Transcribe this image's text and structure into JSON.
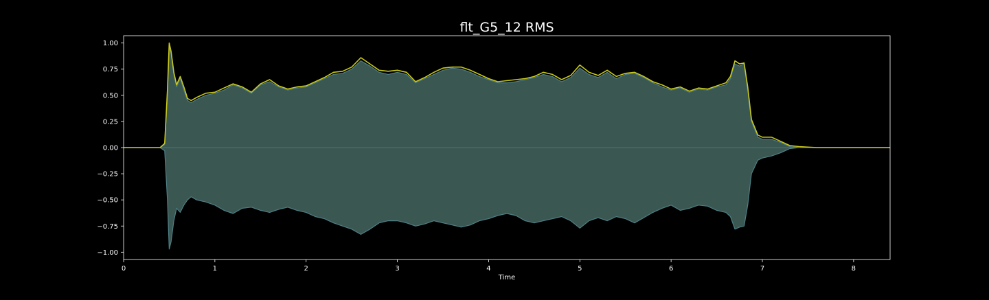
{
  "chart_data": {
    "type": "area",
    "title": "flt_G5_12 RMS",
    "xlabel": "Time",
    "ylabel": "",
    "xlim": [
      0,
      8.4
    ],
    "ylim": [
      -1.07,
      1.07
    ],
    "x_ticks": [
      {
        "value": 0,
        "label": "0"
      },
      {
        "value": 1,
        "label": "1"
      },
      {
        "value": 2,
        "label": "2"
      },
      {
        "value": 3,
        "label": "3"
      },
      {
        "value": 4,
        "label": "4"
      },
      {
        "value": 5,
        "label": "5"
      },
      {
        "value": 6,
        "label": "6"
      },
      {
        "value": 7,
        "label": "7"
      },
      {
        "value": 8,
        "label": "8"
      }
    ],
    "y_ticks": [
      {
        "value": 1.0,
        "label": "1.00"
      },
      {
        "value": 0.75,
        "label": "0.75"
      },
      {
        "value": 0.5,
        "label": "0.50"
      },
      {
        "value": 0.25,
        "label": "0.25"
      },
      {
        "value": 0.0,
        "label": "0.00"
      },
      {
        "value": -0.25,
        "label": "−0.25"
      },
      {
        "value": -0.5,
        "label": "−0.50"
      },
      {
        "value": -0.75,
        "label": "−0.75"
      },
      {
        "value": -1.0,
        "label": "−1.00"
      }
    ],
    "grid": false,
    "colors": {
      "background": "#000000",
      "axes": "#ffffff",
      "waveform_fill": "#3b5752",
      "waveform_edge": "#4f7f86",
      "rms_line": "#c8c81e"
    },
    "series": [
      {
        "kind": "waveform_envelope",
        "x": [
          0,
          0.4,
          0.45,
          0.48,
          0.5,
          0.52,
          0.55,
          0.58,
          0.62,
          0.66,
          0.7,
          0.74,
          0.8,
          0.9,
          1.0,
          1.1,
          1.2,
          1.3,
          1.4,
          1.5,
          1.6,
          1.7,
          1.8,
          1.9,
          2.0,
          2.1,
          2.2,
          2.3,
          2.4,
          2.5,
          2.6,
          2.7,
          2.8,
          2.9,
          3.0,
          3.1,
          3.2,
          3.3,
          3.4,
          3.5,
          3.6,
          3.7,
          3.8,
          3.9,
          4.0,
          4.1,
          4.2,
          4.3,
          4.4,
          4.5,
          4.6,
          4.7,
          4.8,
          4.9,
          5.0,
          5.1,
          5.2,
          5.3,
          5.4,
          5.5,
          5.6,
          5.7,
          5.8,
          5.9,
          6.0,
          6.1,
          6.2,
          6.3,
          6.4,
          6.5,
          6.6,
          6.65,
          6.7,
          6.75,
          6.8,
          6.84,
          6.88,
          6.95,
          7.0,
          7.1,
          7.2,
          7.3,
          7.4,
          7.6,
          8.0,
          8.4
        ],
        "upper": [
          0.0,
          0.0,
          0.03,
          0.5,
          0.97,
          0.9,
          0.7,
          0.58,
          0.66,
          0.55,
          0.45,
          0.43,
          0.46,
          0.5,
          0.52,
          0.55,
          0.6,
          0.57,
          0.52,
          0.6,
          0.63,
          0.58,
          0.55,
          0.57,
          0.58,
          0.62,
          0.66,
          0.7,
          0.71,
          0.75,
          0.83,
          0.78,
          0.72,
          0.7,
          0.72,
          0.7,
          0.62,
          0.66,
          0.7,
          0.74,
          0.76,
          0.75,
          0.72,
          0.68,
          0.65,
          0.62,
          0.62,
          0.63,
          0.65,
          0.67,
          0.7,
          0.68,
          0.63,
          0.67,
          0.76,
          0.7,
          0.67,
          0.72,
          0.66,
          0.7,
          0.71,
          0.67,
          0.62,
          0.58,
          0.55,
          0.57,
          0.53,
          0.56,
          0.55,
          0.58,
          0.6,
          0.66,
          0.8,
          0.78,
          0.8,
          0.55,
          0.25,
          0.1,
          0.08,
          0.08,
          0.05,
          0.01,
          0.0,
          0.0,
          0.0,
          0.0
        ],
        "lower": [
          0.0,
          0.0,
          -0.03,
          -0.5,
          -0.97,
          -0.9,
          -0.7,
          -0.58,
          -0.62,
          -0.55,
          -0.5,
          -0.47,
          -0.5,
          -0.52,
          -0.55,
          -0.6,
          -0.63,
          -0.58,
          -0.57,
          -0.6,
          -0.62,
          -0.59,
          -0.57,
          -0.6,
          -0.62,
          -0.66,
          -0.68,
          -0.72,
          -0.75,
          -0.78,
          -0.83,
          -0.78,
          -0.72,
          -0.7,
          -0.7,
          -0.72,
          -0.75,
          -0.73,
          -0.7,
          -0.72,
          -0.74,
          -0.76,
          -0.74,
          -0.7,
          -0.68,
          -0.65,
          -0.63,
          -0.65,
          -0.7,
          -0.72,
          -0.7,
          -0.68,
          -0.66,
          -0.7,
          -0.77,
          -0.7,
          -0.67,
          -0.7,
          -0.66,
          -0.68,
          -0.72,
          -0.67,
          -0.62,
          -0.58,
          -0.55,
          -0.6,
          -0.58,
          -0.55,
          -0.56,
          -0.6,
          -0.62,
          -0.66,
          -0.78,
          -0.76,
          -0.75,
          -0.55,
          -0.25,
          -0.12,
          -0.1,
          -0.08,
          -0.05,
          -0.01,
          0.0,
          0.0,
          0.0,
          0.0
        ]
      },
      {
        "kind": "rms_line",
        "x": [
          0,
          0.4,
          0.45,
          0.48,
          0.5,
          0.52,
          0.55,
          0.58,
          0.62,
          0.66,
          0.7,
          0.74,
          0.8,
          0.9,
          1.0,
          1.1,
          1.2,
          1.3,
          1.4,
          1.5,
          1.6,
          1.7,
          1.8,
          1.9,
          2.0,
          2.1,
          2.2,
          2.3,
          2.4,
          2.5,
          2.6,
          2.7,
          2.8,
          2.9,
          3.0,
          3.1,
          3.2,
          3.3,
          3.4,
          3.5,
          3.6,
          3.7,
          3.8,
          3.9,
          4.0,
          4.1,
          4.2,
          4.3,
          4.4,
          4.5,
          4.6,
          4.7,
          4.8,
          4.9,
          5.0,
          5.1,
          5.2,
          5.3,
          5.4,
          5.5,
          5.6,
          5.7,
          5.8,
          5.9,
          6.0,
          6.1,
          6.2,
          6.3,
          6.4,
          6.5,
          6.6,
          6.65,
          6.7,
          6.75,
          6.8,
          6.84,
          6.88,
          6.95,
          7.0,
          7.1,
          7.2,
          7.3,
          7.4,
          7.6,
          8.0,
          8.4
        ],
        "y": [
          0.0,
          0.0,
          0.04,
          0.55,
          1.0,
          0.92,
          0.72,
          0.6,
          0.68,
          0.58,
          0.47,
          0.45,
          0.48,
          0.52,
          0.53,
          0.57,
          0.61,
          0.58,
          0.53,
          0.61,
          0.65,
          0.59,
          0.56,
          0.58,
          0.59,
          0.63,
          0.67,
          0.72,
          0.73,
          0.77,
          0.86,
          0.8,
          0.74,
          0.73,
          0.74,
          0.72,
          0.63,
          0.67,
          0.72,
          0.76,
          0.77,
          0.77,
          0.74,
          0.7,
          0.66,
          0.63,
          0.64,
          0.65,
          0.66,
          0.68,
          0.72,
          0.7,
          0.65,
          0.69,
          0.79,
          0.72,
          0.69,
          0.74,
          0.68,
          0.71,
          0.72,
          0.68,
          0.63,
          0.6,
          0.56,
          0.58,
          0.54,
          0.57,
          0.56,
          0.59,
          0.62,
          0.68,
          0.83,
          0.8,
          0.81,
          0.58,
          0.27,
          0.12,
          0.1,
          0.1,
          0.06,
          0.02,
          0.01,
          0.0,
          0.0,
          0.0
        ]
      }
    ]
  }
}
